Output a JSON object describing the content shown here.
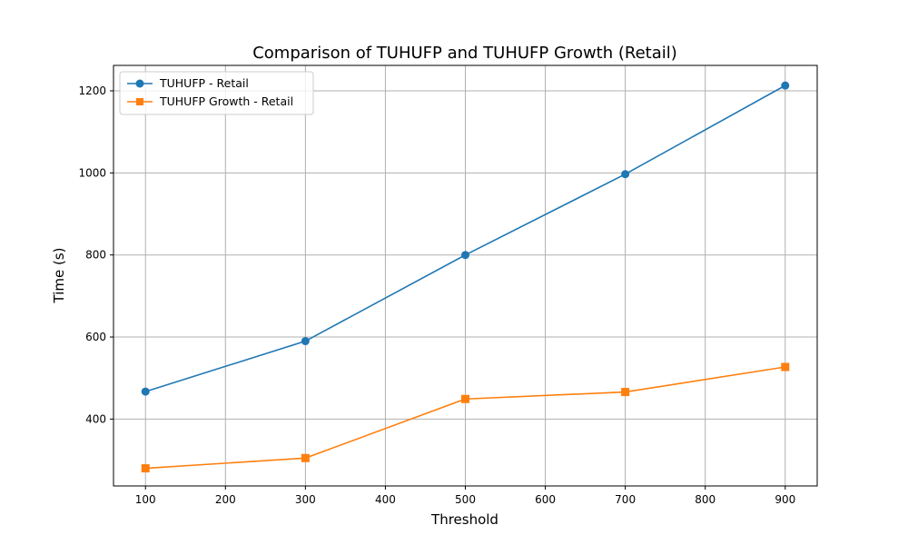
{
  "chart_data": {
    "type": "line",
    "title": "Comparison of TUHUFP and TUHUFP Growth (Retail)",
    "xlabel": "Threshold",
    "ylabel": "Time (s)",
    "x": [
      100,
      300,
      500,
      700,
      900
    ],
    "xlim": [
      60,
      940
    ],
    "ylim": [
      237,
      1262
    ],
    "xticks": [
      100,
      200,
      300,
      400,
      500,
      600,
      700,
      800,
      900
    ],
    "yticks": [
      400,
      600,
      800,
      1000,
      1200
    ],
    "grid": true,
    "legend_position": "top-left",
    "series": [
      {
        "name": "TUHUFP - Retail",
        "values": [
          467,
          590,
          800,
          997,
          1213
        ],
        "color": "#1f77b4",
        "marker": "circle"
      },
      {
        "name": "TUHUFP Growth - Retail",
        "values": [
          280,
          305,
          449,
          466,
          527
        ],
        "color": "#ff7f0e",
        "marker": "square"
      }
    ]
  }
}
